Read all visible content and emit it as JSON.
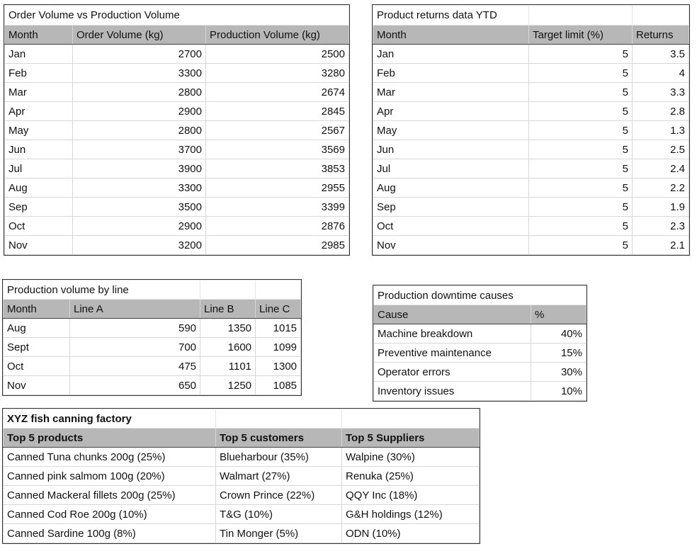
{
  "order_vs_production": {
    "title": "Order Volume vs Production Volume",
    "columns": [
      "Month",
      "Order Volume (kg)",
      "Production Volume (kg)"
    ],
    "rows": [
      [
        "Jan",
        "2700",
        "2500"
      ],
      [
        "Feb",
        "3300",
        "3280"
      ],
      [
        "Mar",
        "2800",
        "2674"
      ],
      [
        "Apr",
        "2900",
        "2845"
      ],
      [
        "May",
        "2800",
        "2567"
      ],
      [
        "Jun",
        "3700",
        "3569"
      ],
      [
        "Jul",
        "3900",
        "3853"
      ],
      [
        "Aug",
        "3300",
        "2955"
      ],
      [
        "Sep",
        "3500",
        "3399"
      ],
      [
        "Oct",
        "2900",
        "2876"
      ],
      [
        "Nov",
        "3200",
        "2985"
      ]
    ]
  },
  "returns": {
    "title": "Product returns data YTD",
    "columns": [
      "Month",
      "Target limit (%)",
      "Returns"
    ],
    "rows": [
      [
        "Jan",
        "5",
        "3.5"
      ],
      [
        "Feb",
        "5",
        "4"
      ],
      [
        "Mar",
        "5",
        "3.3"
      ],
      [
        "Apr",
        "5",
        "2.8"
      ],
      [
        "May",
        "5",
        "1.3"
      ],
      [
        "Jun",
        "5",
        "2.5"
      ],
      [
        "Jul",
        "5",
        "2.4"
      ],
      [
        "Aug",
        "5",
        "2.2"
      ],
      [
        "Sep",
        "5",
        "1.9"
      ],
      [
        "Oct",
        "5",
        "2.3"
      ],
      [
        "Nov",
        "5",
        "2.1"
      ]
    ]
  },
  "production_by_line": {
    "title": "Production volume by line",
    "columns": [
      "Month",
      "Line A",
      "Line B",
      "Line C"
    ],
    "rows": [
      [
        "Aug",
        "590",
        "1350",
        "1015"
      ],
      [
        "Sept",
        "700",
        "1600",
        "1099"
      ],
      [
        "Oct",
        "475",
        "1101",
        "1300"
      ],
      [
        "Nov",
        "650",
        "1250",
        "1085"
      ]
    ]
  },
  "downtime": {
    "title": "Production downtime causes",
    "columns": [
      "Cause",
      "%"
    ],
    "rows": [
      [
        "Machine breakdown",
        "40%"
      ],
      [
        "Preventive maintenance",
        "15%"
      ],
      [
        "Operator errors",
        "30%"
      ],
      [
        "Inventory issues",
        "10%"
      ]
    ]
  },
  "factory": {
    "title": "XYZ fish canning factory",
    "columns": [
      "Top 5 products",
      "Top 5 customers",
      "Top 5 Suppliers"
    ],
    "rows": [
      [
        "Canned Tuna chunks  200g (25%)",
        "Blueharbour (35%)",
        "Walpine (30%)"
      ],
      [
        "Canned pink salmom 100g (20%)",
        "Walmart (27%)",
        "Renuka (25%)"
      ],
      [
        "Canned Mackeral fillets 200g (25%)",
        "Crown Prince (22%)",
        "QQY Inc (18%)"
      ],
      [
        "Canned Cod Roe 200g (10%)",
        "T&G (10%)",
        "G&H holdings (12%)"
      ],
      [
        "Canned  Sardine 100g (8%)",
        "Tin Monger (5%)",
        "ODN  (10%)"
      ]
    ]
  }
}
